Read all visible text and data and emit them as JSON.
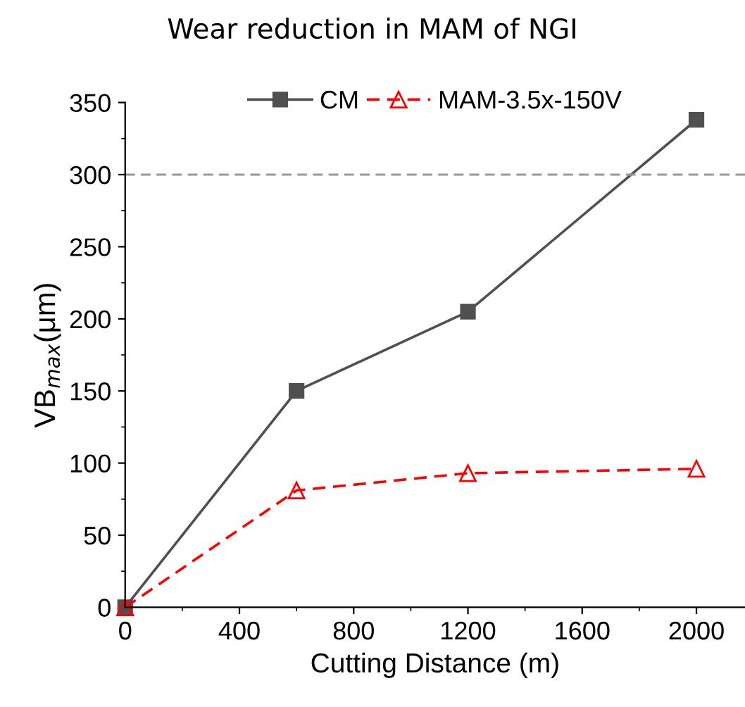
{
  "chart_data": {
    "type": "line",
    "title": "Wear reduction in MAM of NGI",
    "xlabel": "Cutting Distance (m)",
    "ylabel": "VB$_{max}$(μm)",
    "x": [
      0,
      600,
      1200,
      2000
    ],
    "series": [
      {
        "name": "CM",
        "color": "#505050",
        "marker": "square",
        "line_style": "solid",
        "values": [
          0,
          150,
          205,
          338
        ]
      },
      {
        "name": "MAM-3.5x-150V",
        "color": "#ff0000",
        "marker": "triangle",
        "line_style": "dashed",
        "values": [
          0,
          81,
          93,
          96
        ]
      }
    ],
    "xlim": [
      0,
      2170
    ],
    "ylim": [
      0,
      350
    ],
    "xticks": [
      0,
      400,
      800,
      1200,
      1600,
      2000
    ],
    "yticks": [
      0,
      50,
      100,
      150,
      200,
      250,
      300,
      350
    ],
    "ref_lines": [
      {
        "axis": "y",
        "value": 300,
        "color": "#999999",
        "line_style": "dashed"
      }
    ],
    "grid": false,
    "legend": "top"
  }
}
